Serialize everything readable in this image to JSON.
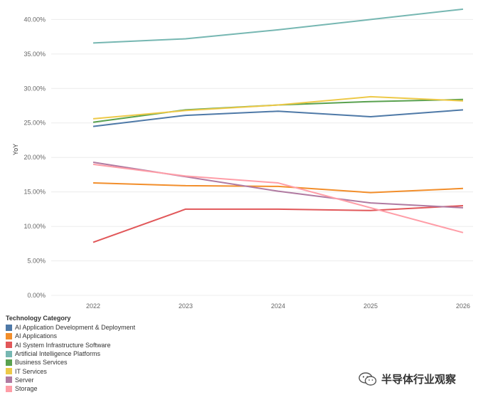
{
  "chart_data": {
    "type": "line",
    "title": "",
    "xlabel": "",
    "ylabel": "YoY",
    "x": [
      "2022",
      "2023",
      "2024",
      "2025",
      "2026"
    ],
    "ylim": [
      0,
      42
    ],
    "yticks": [
      "0.00%",
      "5.00%",
      "10.00%",
      "15.00%",
      "20.00%",
      "25.00%",
      "30.00%",
      "35.00%",
      "40.00%"
    ],
    "ytick_values": [
      0,
      5,
      10,
      15,
      20,
      25,
      30,
      35,
      40
    ],
    "grid": true,
    "legend_title": "Technology Category",
    "legend_position": "bottom-left",
    "series": [
      {
        "name": "AI Application Development & Deployment",
        "color": "#4e79a7",
        "values": [
          24.5,
          26.1,
          26.7,
          25.9,
          26.9
        ]
      },
      {
        "name": "AI Applications",
        "color": "#f28e2b",
        "values": [
          16.3,
          15.9,
          15.8,
          14.9,
          15.5
        ]
      },
      {
        "name": "AI System Infrastructure Software",
        "color": "#e15759",
        "values": [
          7.7,
          12.5,
          12.5,
          12.3,
          13.0
        ]
      },
      {
        "name": "Artificial Intelligence Platforms",
        "color": "#76b7b2",
        "values": [
          36.6,
          37.2,
          38.5,
          40.0,
          41.5
        ]
      },
      {
        "name": "Business Services",
        "color": "#59a14f",
        "values": [
          25.1,
          26.9,
          27.6,
          28.1,
          28.4
        ]
      },
      {
        "name": "IT Services",
        "color": "#edc948",
        "values": [
          25.6,
          26.8,
          27.6,
          28.8,
          28.2
        ]
      },
      {
        "name": "Server",
        "color": "#b07aa1",
        "values": [
          19.3,
          17.2,
          15.1,
          13.4,
          12.7
        ]
      },
      {
        "name": "Storage",
        "color": "#ff9da7",
        "values": [
          19.0,
          17.3,
          16.3,
          12.7,
          9.1
        ]
      }
    ]
  },
  "watermark": {
    "text": "半导体行业观察",
    "icon": "wechat-icon"
  }
}
